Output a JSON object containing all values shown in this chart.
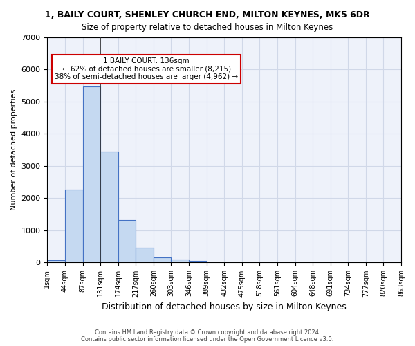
{
  "title": "1, BAILY COURT, SHENLEY CHURCH END, MILTON KEYNES, MK5 6DR",
  "subtitle": "Size of property relative to detached houses in Milton Keynes",
  "xlabel": "Distribution of detached houses by size in Milton Keynes",
  "ylabel": "Number of detached properties",
  "bin_labels": [
    "1sqm",
    "44sqm",
    "87sqm",
    "131sqm",
    "174sqm",
    "217sqm",
    "260sqm",
    "303sqm",
    "346sqm",
    "389sqm",
    "432sqm",
    "475sqm",
    "518sqm",
    "561sqm",
    "604sqm",
    "648sqm",
    "691sqm",
    "734sqm",
    "777sqm",
    "820sqm",
    "863sqm"
  ],
  "bar_values": [
    80,
    2270,
    5470,
    3450,
    1320,
    470,
    155,
    85,
    55,
    20,
    5,
    2,
    1,
    0,
    0,
    0,
    0,
    0,
    0,
    0
  ],
  "bar_color": "#c5d9f1",
  "bar_edge_color": "#4472c4",
  "ylim": [
    0,
    7000
  ],
  "yticks": [
    0,
    1000,
    2000,
    3000,
    4000,
    5000,
    6000,
    7000
  ],
  "property_line_x": 3,
  "annotation_text": "1 BAILY COURT: 136sqm\n← 62% of detached houses are smaller (8,215)\n38% of semi-detached houses are larger (4,962) →",
  "annotation_box_color": "#ffffff",
  "annotation_box_edge": "#cc0000",
  "footer_line1": "Contains HM Land Registry data © Crown copyright and database right 2024.",
  "footer_line2": "Contains public sector information licensed under the Open Government Licence v3.0.",
  "grid_color": "#d0d8e8",
  "background_color": "#eef2fa"
}
